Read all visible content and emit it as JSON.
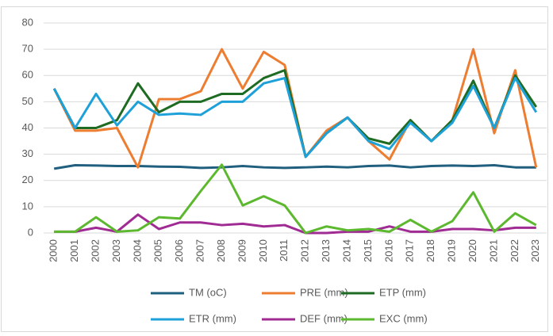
{
  "chart_data": {
    "type": "line",
    "categories": [
      "2000",
      "2001",
      "2002",
      "2003",
      "2004",
      "2005",
      "2006",
      "2007",
      "2008",
      "2009",
      "2010",
      "2011",
      "2012",
      "2013",
      "2014",
      "2015",
      "2016",
      "2017",
      "2018",
      "2019",
      "2020",
      "2021",
      "2022",
      "2023"
    ],
    "series": [
      {
        "name": "TM (oC)",
        "color": "#215f7f",
        "values": [
          24.5,
          25.8,
          25.7,
          25.5,
          25.5,
          25.3,
          25.2,
          24.8,
          25,
          25.5,
          25,
          24.8,
          25,
          25.3,
          25,
          25.5,
          25.7,
          25,
          25.5,
          25.7,
          25.5,
          25.8,
          25,
          25
        ]
      },
      {
        "name": "PRE (mm)",
        "color": "#ed7d31",
        "values": [
          55,
          39,
          39,
          40,
          25,
          51,
          51,
          54,
          70,
          55,
          69,
          64,
          29,
          39,
          44,
          35,
          28,
          43,
          35,
          43,
          70,
          38,
          62,
          25
        ]
      },
      {
        "name": "ETP (mm)",
        "color": "#1e6b24",
        "values": [
          55,
          40,
          40,
          43,
          57,
          46,
          50,
          50,
          53,
          53,
          59,
          62,
          29,
          38,
          44,
          36,
          34,
          43,
          35,
          43,
          58,
          40,
          60,
          48
        ]
      },
      {
        "name": "ETR (mm)",
        "color": "#1ea0d8",
        "values": [
          55,
          40,
          53,
          41,
          50,
          45,
          45.5,
          45,
          50,
          50,
          57,
          59,
          29,
          38,
          44,
          35,
          32,
          42,
          35,
          42,
          56,
          40,
          59,
          46
        ]
      },
      {
        "name": "DEF (mm)",
        "color": "#a02b93",
        "values": [
          0.5,
          0.5,
          2,
          0.5,
          7,
          1.5,
          4,
          4,
          3,
          3.5,
          2.5,
          3,
          0,
          0,
          0.5,
          0.5,
          2.5,
          0.5,
          0.5,
          1.5,
          1.5,
          1,
          2,
          2
        ]
      },
      {
        "name": "EXC (mm)",
        "color": "#5cb82e",
        "values": [
          0.5,
          0.5,
          6,
          0.5,
          1,
          6,
          5.5,
          16,
          26,
          10.5,
          14,
          10.5,
          0,
          2.5,
          1,
          1.5,
          0.5,
          5,
          0.5,
          4.5,
          15.5,
          0.5,
          7.5,
          3
        ]
      }
    ],
    "ylim": [
      0,
      80
    ],
    "yticks": [
      0,
      10,
      20,
      30,
      40,
      50,
      60,
      70,
      80
    ],
    "grid": true,
    "legend": "bottom"
  }
}
